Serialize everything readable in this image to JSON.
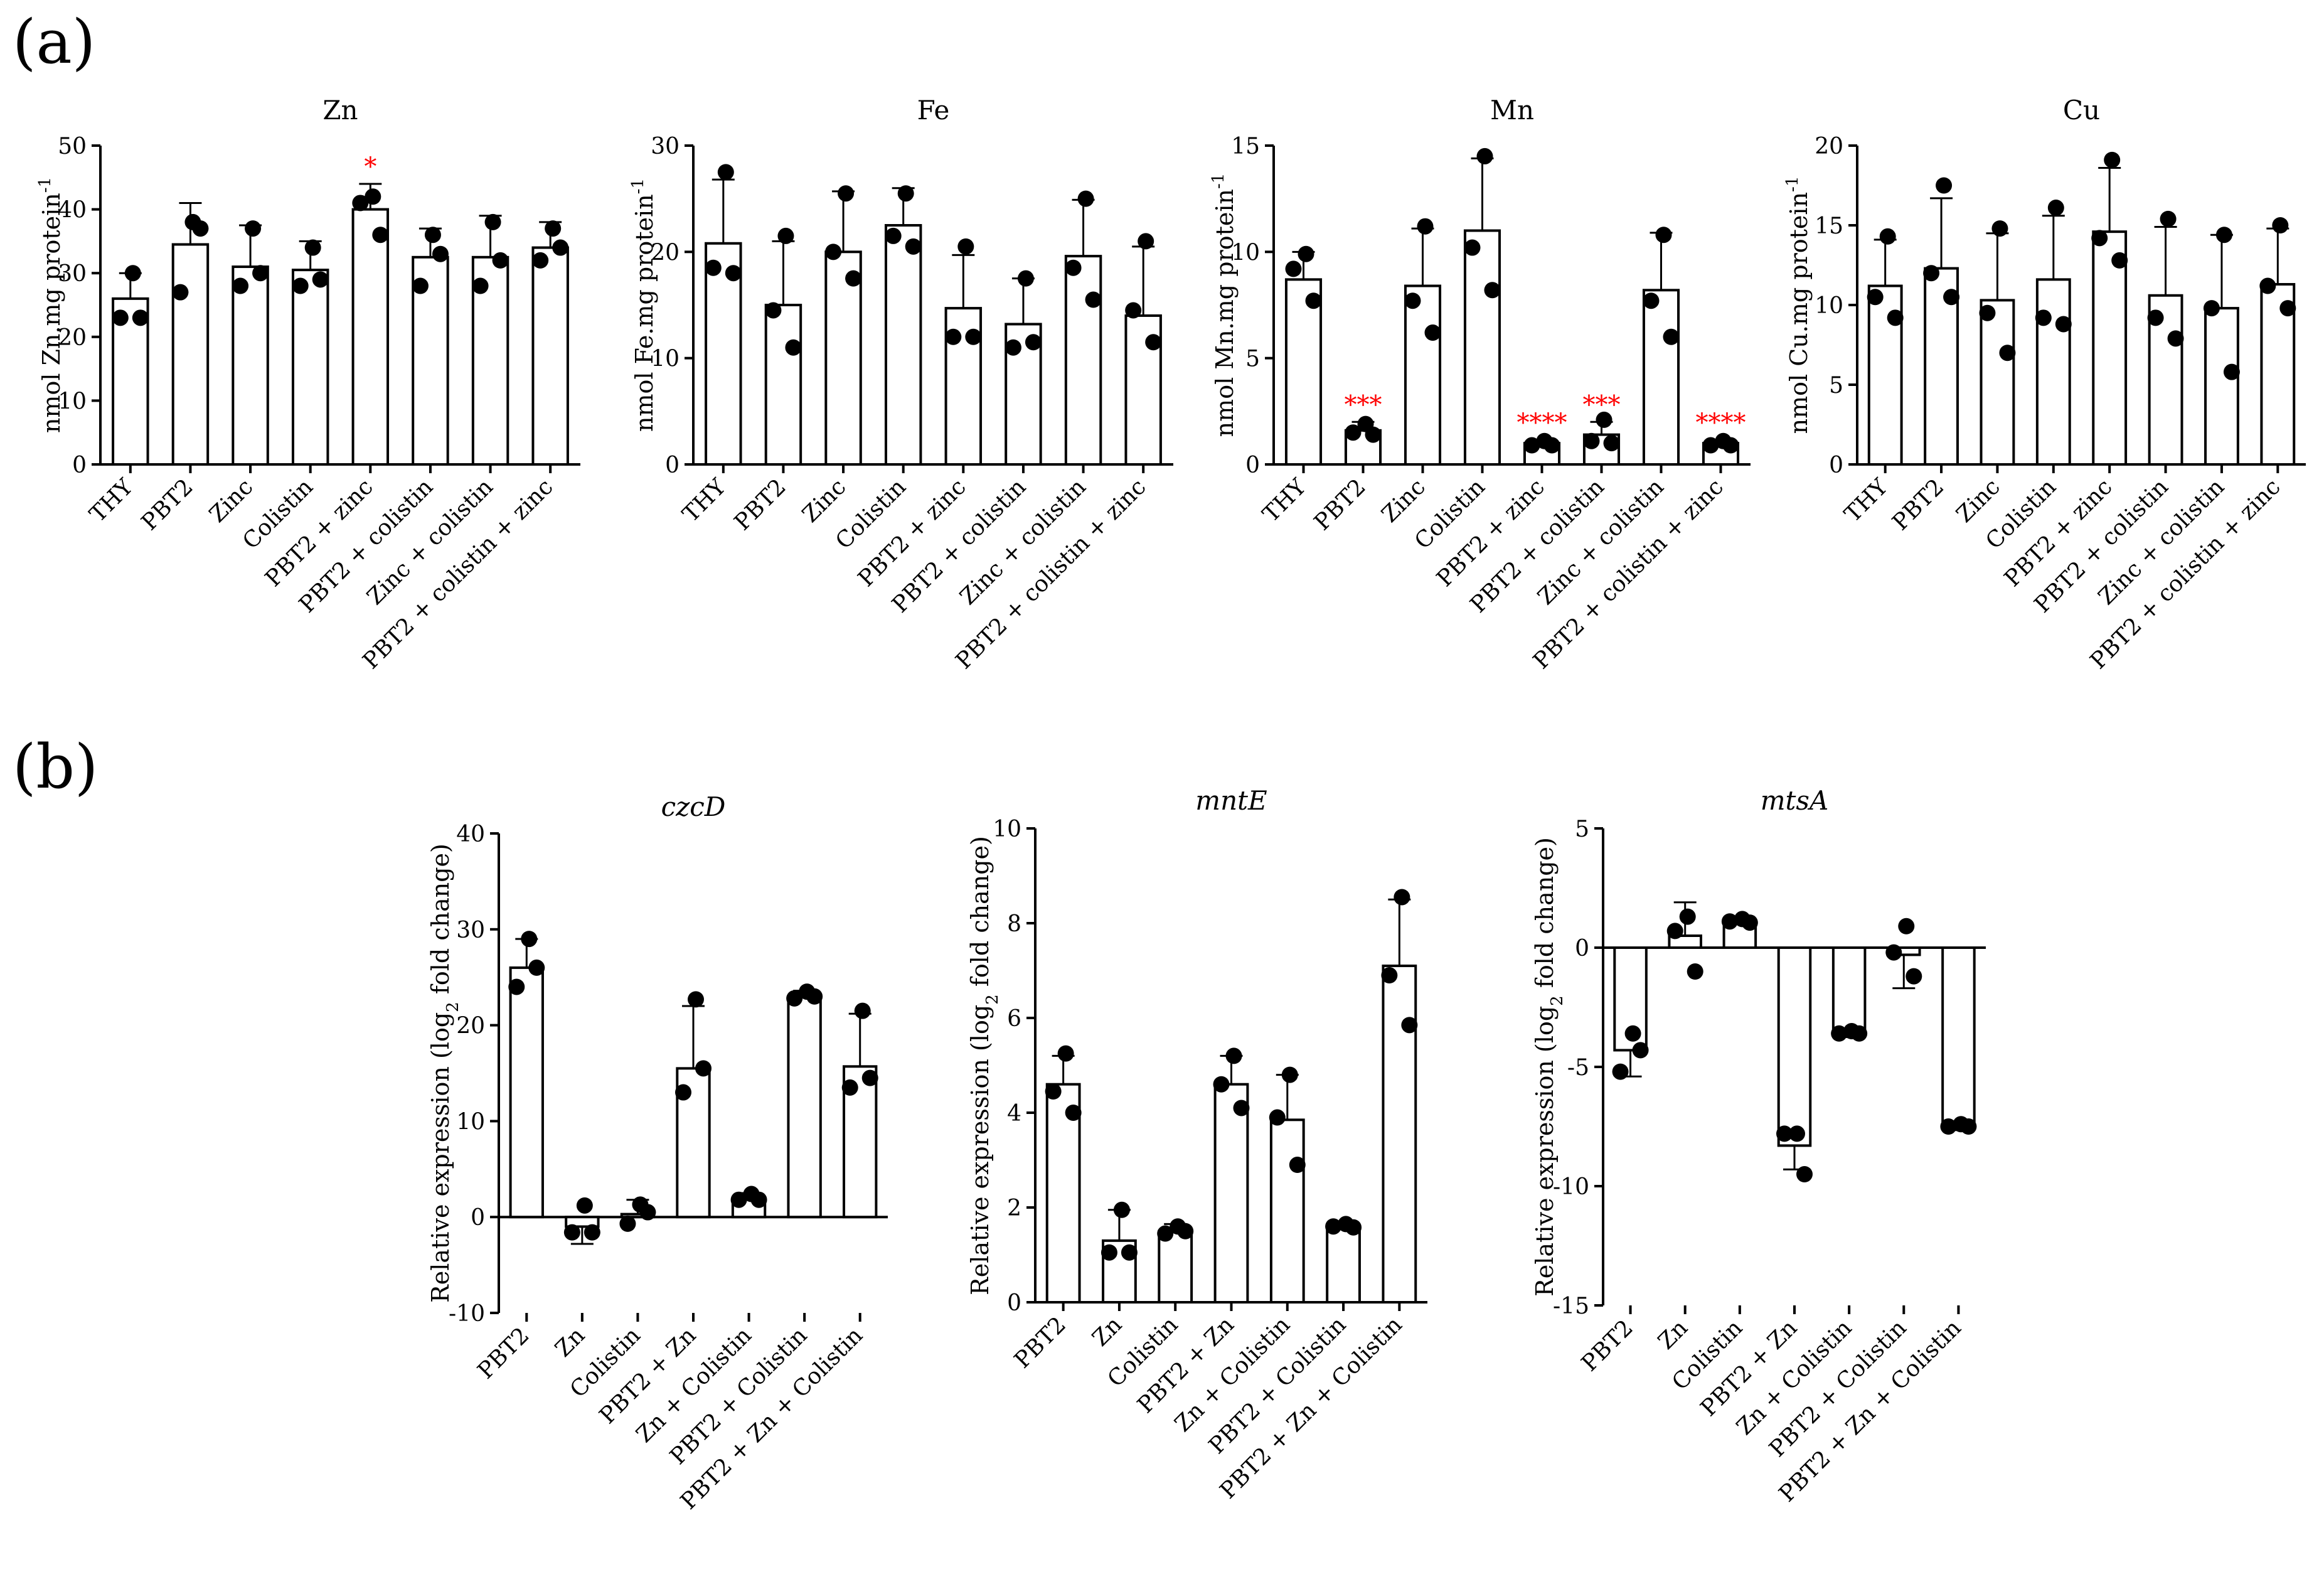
{
  "panels": [
    {
      "label": "(a)"
    },
    {
      "label": "(b)"
    }
  ],
  "chart_data": [
    {
      "type": "bar",
      "panel": "(a)",
      "title": "Zn",
      "ylabel": "nmol Zn.mg protein",
      "ylabel_superscript": "-1",
      "ylim": [
        0,
        50
      ],
      "yticks": [
        0,
        10,
        20,
        30,
        40,
        50
      ],
      "categories": [
        "THY",
        "PBT2",
        "Zinc",
        "Colistin",
        "PBT2 + zinc",
        "PBT2 + colistin",
        "Zinc + colistin",
        "PBT2 + colistin + zinc"
      ],
      "values": [
        26,
        34.5,
        31,
        30.5,
        40,
        32.5,
        32.5,
        34
      ],
      "error": [
        4,
        6.5,
        6.5,
        4.5,
        4,
        4.5,
        6.5,
        4
      ],
      "points": [
        [
          30,
          23,
          23
        ],
        [
          38,
          27,
          37
        ],
        [
          37,
          28,
          30
        ],
        [
          34,
          28,
          29
        ],
        [
          42,
          41,
          36
        ],
        [
          36,
          28,
          33
        ],
        [
          38,
          28,
          32
        ],
        [
          37,
          32,
          34
        ]
      ],
      "significance": [
        "",
        "",
        "",
        "",
        "*",
        "",
        "",
        ""
      ],
      "sig_color": "#ff0000"
    },
    {
      "type": "bar",
      "panel": "(a)",
      "title": "Fe",
      "ylabel": "nmol Fe.mg protein",
      "ylabel_superscript": "-1",
      "ylim": [
        0,
        30
      ],
      "yticks": [
        0,
        10,
        20,
        30
      ],
      "categories": [
        "THY",
        "PBT2",
        "Zinc",
        "Colistin",
        "PBT2 + zinc",
        "PBT2 + colistin",
        "Zinc + colistin",
        "PBT2 + colistin + zinc"
      ],
      "values": [
        20.8,
        15,
        20,
        22.5,
        14.7,
        13.2,
        19.6,
        14
      ],
      "error": [
        6,
        6,
        5.7,
        3.5,
        5,
        4.3,
        5.3,
        6.5
      ],
      "points": [
        [
          27.5,
          18.5,
          18
        ],
        [
          21.5,
          14.5,
          11
        ],
        [
          25.5,
          20,
          17.5
        ],
        [
          25.5,
          21.5,
          20.5
        ],
        [
          20.5,
          12,
          12
        ],
        [
          17.5,
          11,
          11.5
        ],
        [
          25,
          18.5,
          15.5
        ],
        [
          21,
          14.5,
          11.5
        ]
      ],
      "significance": [
        "",
        "",
        "",
        "",
        "",
        "",
        "",
        ""
      ],
      "sig_color": "#ff0000"
    },
    {
      "type": "bar",
      "panel": "(a)",
      "title": "Mn",
      "ylabel": "nmol Mn.mg protein",
      "ylabel_superscript": "-1",
      "ylim": [
        0,
        15
      ],
      "yticks": [
        0,
        5,
        10,
        15
      ],
      "categories": [
        "THY",
        "PBT2",
        "Zinc",
        "Colistin",
        "PBT2 + zinc",
        "PBT2 + colistin",
        "Zinc + colistin",
        "PBT2 + colistin + zinc"
      ],
      "values": [
        8.7,
        1.6,
        8.4,
        11,
        1,
        1.4,
        8.2,
        1
      ],
      "error": [
        1.3,
        0.4,
        2.7,
        3.4,
        0.15,
        0.6,
        2.7,
        0.15
      ],
      "points": [
        [
          9.9,
          9.2,
          7.7
        ],
        [
          1.9,
          1.5,
          1.4
        ],
        [
          11.2,
          7.7,
          6.2
        ],
        [
          14.5,
          10.2,
          8.2
        ],
        [
          1.1,
          0.9,
          0.9
        ],
        [
          2.1,
          1.1,
          1.0
        ],
        [
          10.8,
          7.7,
          6.0
        ],
        [
          1.1,
          0.9,
          0.9
        ]
      ],
      "significance": [
        "",
        "***",
        "",
        "",
        "****",
        "***",
        "",
        "****"
      ],
      "sig_color": "#ff0000"
    },
    {
      "type": "bar",
      "panel": "(a)",
      "title": "Cu",
      "ylabel": "nmol Cu.mg protein",
      "ylabel_superscript": "-1",
      "ylim": [
        0,
        20
      ],
      "yticks": [
        0,
        5,
        10,
        15,
        20
      ],
      "categories": [
        "THY",
        "PBT2",
        "Zinc",
        "Colistin",
        "PBT2 + zinc",
        "PBT2 + colistin",
        "Zinc + colistin",
        "PBT2 + colistin + zinc"
      ],
      "values": [
        11.2,
        12.3,
        10.3,
        11.6,
        14.6,
        10.6,
        9.8,
        11.3
      ],
      "error": [
        2.9,
        4.4,
        4.2,
        4,
        4,
        4.3,
        4.6,
        3.5
      ],
      "points": [
        [
          14.3,
          10.5,
          9.2
        ],
        [
          17.5,
          12,
          10.5
        ],
        [
          14.8,
          9.5,
          7.0
        ],
        [
          16.1,
          9.2,
          8.8
        ],
        [
          19.1,
          14.2,
          12.8
        ],
        [
          15.4,
          9.2,
          7.9
        ],
        [
          14.4,
          9.8,
          5.8
        ],
        [
          15.0,
          11.2,
          9.8
        ]
      ],
      "significance": [
        "",
        "",
        "",
        "",
        "",
        "",
        "",
        ""
      ],
      "sig_color": "#ff0000"
    },
    {
      "type": "bar",
      "panel": "(b)",
      "title": "czcD",
      "ylabel": "Relative expression (log",
      "ylabel_subscript": "2",
      "ylabel_suffix": " fold change)",
      "ylim": [
        -10,
        40
      ],
      "yticks": [
        -10,
        0,
        10,
        20,
        30,
        40
      ],
      "categories": [
        "PBT2",
        "Zn",
        "Colistin",
        "PBT2 + Zn",
        "Zn + Colistin",
        "PBT2 + Colistin",
        "PBT2 + Zn + Colistin"
      ],
      "values": [
        26,
        -1,
        0.3,
        15.5,
        1.9,
        23,
        15.7
      ],
      "error": [
        3,
        1.8,
        1.5,
        6.5,
        0.6,
        0.6,
        5.5
      ],
      "points": [
        [
          29,
          24,
          26
        ],
        [
          1.2,
          -1.6,
          -1.6
        ],
        [
          1.3,
          -0.7,
          0.5
        ],
        [
          22.7,
          13,
          15.5
        ],
        [
          2.4,
          1.8,
          1.8
        ],
        [
          23.5,
          22.8,
          23
        ],
        [
          21.5,
          13.5,
          14.5
        ]
      ]
    },
    {
      "type": "bar",
      "panel": "(b)",
      "title": "mntE",
      "ylabel": "Relative expression (log",
      "ylabel_subscript": "2",
      "ylabel_suffix": " fold change)",
      "ylim": [
        0,
        10
      ],
      "yticks": [
        0,
        2,
        4,
        6,
        8,
        10
      ],
      "categories": [
        "PBT2",
        "Zn",
        "Colistin",
        "PBT2 + Zn",
        "Zn + Colistin",
        "PBT2 + Colistin",
        "PBT2 + Zn + Colistin"
      ],
      "values": [
        4.6,
        1.3,
        1.5,
        4.6,
        3.85,
        1.6,
        7.1
      ],
      "error": [
        0.6,
        0.65,
        0.15,
        0.6,
        0.95,
        0.08,
        1.4
      ],
      "points": [
        [
          5.25,
          4.45,
          4.0
        ],
        [
          1.95,
          1.05,
          1.05
        ],
        [
          1.6,
          1.45,
          1.5
        ],
        [
          5.2,
          4.6,
          4.1
        ],
        [
          4.8,
          3.9,
          2.9
        ],
        [
          1.65,
          1.6,
          1.58
        ],
        [
          8.55,
          6.9,
          5.85
        ]
      ]
    },
    {
      "type": "bar",
      "panel": "(b)",
      "title": "mtsA",
      "ylabel": "Relative expression (log",
      "ylabel_subscript": "2",
      "ylabel_suffix": " fold change)",
      "ylim": [
        -15,
        5
      ],
      "yticks": [
        -15,
        -10,
        -5,
        0,
        5
      ],
      "categories": [
        "PBT2",
        "Zn",
        "Colistin",
        "PBT2 + Zn",
        "Zn + Colistin",
        "PBT2 + Colistin",
        "PBT2 + Zn + Colistin"
      ],
      "values": [
        -4.3,
        0.5,
        1.1,
        -8.3,
        -3.6,
        -0.3,
        -7.5
      ],
      "error": [
        1.1,
        1.4,
        0.2,
        1.0,
        0.15,
        1.4,
        0.15
      ],
      "points": [
        [
          -3.6,
          -5.2,
          -4.3
        ],
        [
          1.3,
          0.7,
          -1.0
        ],
        [
          1.2,
          1.1,
          1.05
        ],
        [
          -7.8,
          -7.8,
          -9.5
        ],
        [
          -3.5,
          -3.6,
          -3.6
        ],
        [
          0.9,
          -0.2,
          -1.2
        ],
        [
          -7.4,
          -7.5,
          -7.5
        ]
      ]
    }
  ]
}
